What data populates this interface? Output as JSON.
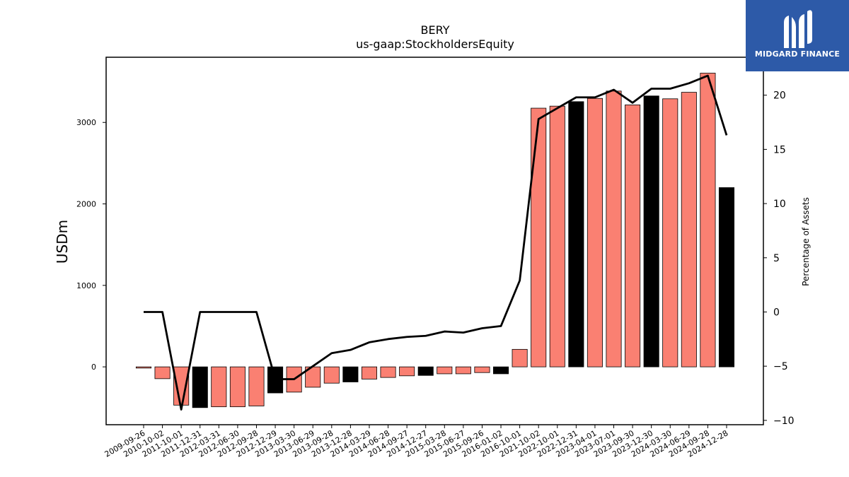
{
  "chart_data": {
    "type": "bar",
    "title": "BERY",
    "subtitle": "us-gaap:StockholdersEquity",
    "ylabel": "USDm",
    "y2label": "Percentage of Assets",
    "ylim": [
      -710,
      3800
    ],
    "y2lim": [
      -10.4,
      23.5
    ],
    "yticks": [
      0,
      1000,
      2000,
      3000
    ],
    "y2ticks": [
      -10,
      -5,
      0,
      5,
      10,
      15,
      20
    ],
    "categories": [
      "2009-09-26",
      "2010-10-02",
      "2011-10-01",
      "2011-12-31",
      "2012-03-31",
      "2012-06-30",
      "2012-09-28",
      "2012-12-29",
      "2013-03-30",
      "2013-06-29",
      "2013-09-28",
      "2013-12-28",
      "2014-03-29",
      "2014-06-28",
      "2014-09-27",
      "2014-12-27",
      "2015-03-28",
      "2015-06-27",
      "2015-09-26",
      "2016-01-02",
      "2016-10-01",
      "2021-10-02",
      "2022-10-01",
      "2022-12-31",
      "2023-04-01",
      "2023-07-01",
      "2023-09-30",
      "2023-12-30",
      "2024-03-30",
      "2024-06-29",
      "2024-09-28",
      "2024-12-28"
    ],
    "series": [
      {
        "type": "bar",
        "values": [
          -15,
          -145,
          -470,
          -500,
          -490,
          -490,
          -480,
          -320,
          -310,
          -250,
          -200,
          -185,
          -150,
          -130,
          -110,
          -105,
          -85,
          -85,
          -70,
          -85,
          215,
          3175,
          3200,
          3255,
          3295,
          3385,
          3215,
          3325,
          3290,
          3370,
          3605,
          2200
        ],
        "highlight": [
          false,
          false,
          false,
          true,
          false,
          false,
          false,
          true,
          false,
          false,
          false,
          true,
          false,
          false,
          false,
          true,
          false,
          false,
          false,
          true,
          false,
          false,
          false,
          true,
          false,
          false,
          false,
          true,
          false,
          false,
          false,
          true
        ]
      },
      {
        "type": "line",
        "axis": "right",
        "values": [
          0,
          0,
          -9,
          0,
          0,
          0,
          0,
          -6.2,
          -6.2,
          -5,
          -3.8,
          -3.5,
          -2.8,
          -2.5,
          -2.3,
          -2.2,
          -1.8,
          -1.9,
          -1.5,
          -1.3,
          2.9,
          17.8,
          18.8,
          19.8,
          19.8,
          20.5,
          19.3,
          20.6,
          20.6,
          21.1,
          21.8,
          16.3
        ]
      }
    ],
    "colors": {
      "bar": "#fa8072",
      "bar_highlight": "#000000",
      "line": "#000000"
    },
    "grid": false
  },
  "logo": {
    "text": "MIDGARD FINANCE"
  }
}
